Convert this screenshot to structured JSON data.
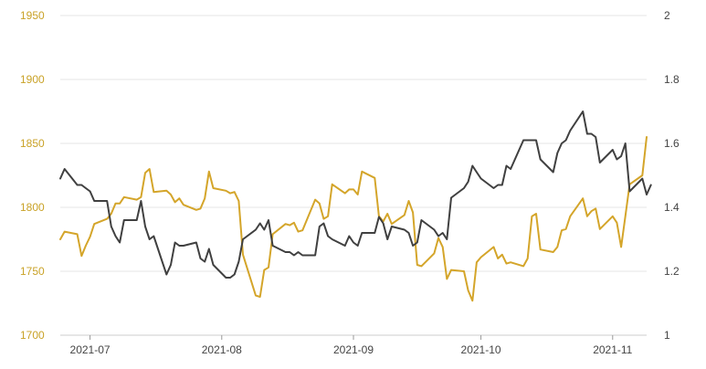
{
  "chart_data": {
    "type": "line",
    "title": "",
    "legend": "none",
    "grid": "horizontal",
    "x_ticks": [
      {
        "label": "2021-07",
        "date": "2021-07-01"
      },
      {
        "label": "2021-08",
        "date": "2021-08-01"
      },
      {
        "label": "2021-09",
        "date": "2021-09-01"
      },
      {
        "label": "2021-10",
        "date": "2021-10-01"
      },
      {
        "label": "2021-11",
        "date": "2021-11-01"
      }
    ],
    "xlim": [
      "2021-06-24",
      "2021-11-09"
    ],
    "y_left": {
      "ticks": [
        "1950",
        "1900",
        "1850",
        "1800",
        "1750",
        "1700"
      ],
      "range": [
        1700,
        1950
      ],
      "color": "#c9a227"
    },
    "y_right": {
      "ticks": [
        "2",
        "1.8",
        "1.6",
        "1.4",
        "1.2",
        "1"
      ],
      "range": [
        1,
        2
      ],
      "color": "#444444"
    },
    "series": [
      {
        "axis": "left",
        "color": "#d4a52a",
        "points": [
          [
            "2021-06-24",
            1775
          ],
          [
            "2021-06-25",
            1781
          ],
          [
            "2021-06-28",
            1779
          ],
          [
            "2021-06-29",
            1762
          ],
          [
            "2021-06-30",
            1770
          ],
          [
            "2021-07-01",
            1777
          ],
          [
            "2021-07-02",
            1787
          ],
          [
            "2021-07-05",
            1791
          ],
          [
            "2021-07-06",
            1795
          ],
          [
            "2021-07-07",
            1803
          ],
          [
            "2021-07-08",
            1803
          ],
          [
            "2021-07-09",
            1808
          ],
          [
            "2021-07-12",
            1806
          ],
          [
            "2021-07-13",
            1808
          ],
          [
            "2021-07-14",
            1827
          ],
          [
            "2021-07-15",
            1830
          ],
          [
            "2021-07-16",
            1812
          ],
          [
            "2021-07-19",
            1813
          ],
          [
            "2021-07-20",
            1810
          ],
          [
            "2021-07-21",
            1804
          ],
          [
            "2021-07-22",
            1807
          ],
          [
            "2021-07-23",
            1802
          ],
          [
            "2021-07-26",
            1798
          ],
          [
            "2021-07-27",
            1799
          ],
          [
            "2021-07-28",
            1807
          ],
          [
            "2021-07-29",
            1828
          ],
          [
            "2021-07-30",
            1815
          ],
          [
            "2021-08-02",
            1813
          ],
          [
            "2021-08-03",
            1811
          ],
          [
            "2021-08-04",
            1812
          ],
          [
            "2021-08-05",
            1805
          ],
          [
            "2021-08-06",
            1763
          ],
          [
            "2021-08-09",
            1731
          ],
          [
            "2021-08-10",
            1730
          ],
          [
            "2021-08-11",
            1751
          ],
          [
            "2021-08-12",
            1753
          ],
          [
            "2021-08-13",
            1779
          ],
          [
            "2021-08-16",
            1787
          ],
          [
            "2021-08-17",
            1786
          ],
          [
            "2021-08-18",
            1788
          ],
          [
            "2021-08-19",
            1781
          ],
          [
            "2021-08-20",
            1782
          ],
          [
            "2021-08-23",
            1806
          ],
          [
            "2021-08-24",
            1803
          ],
          [
            "2021-08-25",
            1791
          ],
          [
            "2021-08-26",
            1793
          ],
          [
            "2021-08-27",
            1818
          ],
          [
            "2021-08-30",
            1811
          ],
          [
            "2021-08-31",
            1814
          ],
          [
            "2021-09-01",
            1814
          ],
          [
            "2021-09-02",
            1810
          ],
          [
            "2021-09-03",
            1828
          ],
          [
            "2021-09-06",
            1823
          ],
          [
            "2021-09-07",
            1793
          ],
          [
            "2021-09-08",
            1789
          ],
          [
            "2021-09-09",
            1795
          ],
          [
            "2021-09-10",
            1787
          ],
          [
            "2021-09-13",
            1794
          ],
          [
            "2021-09-14",
            1805
          ],
          [
            "2021-09-15",
            1796
          ],
          [
            "2021-09-16",
            1755
          ],
          [
            "2021-09-17",
            1754
          ],
          [
            "2021-09-20",
            1764
          ],
          [
            "2021-09-21",
            1776
          ],
          [
            "2021-09-22",
            1769
          ],
          [
            "2021-09-23",
            1744
          ],
          [
            "2021-09-24",
            1751
          ],
          [
            "2021-09-27",
            1750
          ],
          [
            "2021-09-28",
            1735
          ],
          [
            "2021-09-29",
            1727
          ],
          [
            "2021-09-30",
            1757
          ],
          [
            "2021-10-01",
            1761
          ],
          [
            "2021-10-04",
            1769
          ],
          [
            "2021-10-05",
            1760
          ],
          [
            "2021-10-06",
            1763
          ],
          [
            "2021-10-07",
            1756
          ],
          [
            "2021-10-08",
            1757
          ],
          [
            "2021-10-11",
            1754
          ],
          [
            "2021-10-12",
            1760
          ],
          [
            "2021-10-13",
            1793
          ],
          [
            "2021-10-14",
            1795
          ],
          [
            "2021-10-15",
            1767
          ],
          [
            "2021-10-18",
            1765
          ],
          [
            "2021-10-19",
            1769
          ],
          [
            "2021-10-20",
            1782
          ],
          [
            "2021-10-21",
            1783
          ],
          [
            "2021-10-22",
            1793
          ],
          [
            "2021-10-25",
            1807
          ],
          [
            "2021-10-26",
            1793
          ],
          [
            "2021-10-27",
            1797
          ],
          [
            "2021-10-28",
            1799
          ],
          [
            "2021-10-29",
            1783
          ],
          [
            "2021-11-01",
            1793
          ],
          [
            "2021-11-02",
            1788
          ],
          [
            "2021-11-03",
            1769
          ],
          [
            "2021-11-04",
            1793
          ],
          [
            "2021-11-05",
            1818
          ],
          [
            "2021-11-08",
            1825
          ],
          [
            "2021-11-09",
            1855
          ]
        ]
      },
      {
        "axis": "right",
        "color": "#404040",
        "points": [
          [
            "2021-06-24",
            1.49
          ],
          [
            "2021-06-25",
            1.52
          ],
          [
            "2021-06-28",
            1.47
          ],
          [
            "2021-06-29",
            1.47
          ],
          [
            "2021-06-30",
            1.46
          ],
          [
            "2021-07-01",
            1.45
          ],
          [
            "2021-07-02",
            1.42
          ],
          [
            "2021-07-05",
            1.42
          ],
          [
            "2021-07-06",
            1.34
          ],
          [
            "2021-07-07",
            1.31
          ],
          [
            "2021-07-08",
            1.29
          ],
          [
            "2021-07-09",
            1.36
          ],
          [
            "2021-07-12",
            1.36
          ],
          [
            "2021-07-13",
            1.42
          ],
          [
            "2021-07-14",
            1.34
          ],
          [
            "2021-07-15",
            1.3
          ],
          [
            "2021-07-16",
            1.31
          ],
          [
            "2021-07-19",
            1.19
          ],
          [
            "2021-07-20",
            1.22
          ],
          [
            "2021-07-21",
            1.29
          ],
          [
            "2021-07-22",
            1.28
          ],
          [
            "2021-07-23",
            1.28
          ],
          [
            "2021-07-26",
            1.29
          ],
          [
            "2021-07-27",
            1.24
          ],
          [
            "2021-07-28",
            1.23
          ],
          [
            "2021-07-29",
            1.27
          ],
          [
            "2021-07-30",
            1.22
          ],
          [
            "2021-08-02",
            1.18
          ],
          [
            "2021-08-03",
            1.18
          ],
          [
            "2021-08-04",
            1.19
          ],
          [
            "2021-08-05",
            1.23
          ],
          [
            "2021-08-06",
            1.3
          ],
          [
            "2021-08-09",
            1.33
          ],
          [
            "2021-08-10",
            1.35
          ],
          [
            "2021-08-11",
            1.33
          ],
          [
            "2021-08-12",
            1.36
          ],
          [
            "2021-08-13",
            1.28
          ],
          [
            "2021-08-16",
            1.26
          ],
          [
            "2021-08-17",
            1.26
          ],
          [
            "2021-08-18",
            1.25
          ],
          [
            "2021-08-19",
            1.26
          ],
          [
            "2021-08-20",
            1.25
          ],
          [
            "2021-08-23",
            1.25
          ],
          [
            "2021-08-24",
            1.34
          ],
          [
            "2021-08-25",
            1.35
          ],
          [
            "2021-08-26",
            1.31
          ],
          [
            "2021-08-27",
            1.3
          ],
          [
            "2021-08-30",
            1.28
          ],
          [
            "2021-08-31",
            1.31
          ],
          [
            "2021-09-01",
            1.29
          ],
          [
            "2021-09-02",
            1.28
          ],
          [
            "2021-09-03",
            1.32
          ],
          [
            "2021-09-06",
            1.32
          ],
          [
            "2021-09-07",
            1.37
          ],
          [
            "2021-09-08",
            1.35
          ],
          [
            "2021-09-09",
            1.3
          ],
          [
            "2021-09-10",
            1.34
          ],
          [
            "2021-09-13",
            1.33
          ],
          [
            "2021-09-14",
            1.32
          ],
          [
            "2021-09-15",
            1.28
          ],
          [
            "2021-09-16",
            1.29
          ],
          [
            "2021-09-17",
            1.36
          ],
          [
            "2021-09-20",
            1.33
          ],
          [
            "2021-09-21",
            1.31
          ],
          [
            "2021-09-22",
            1.32
          ],
          [
            "2021-09-23",
            1.3
          ],
          [
            "2021-09-24",
            1.43
          ],
          [
            "2021-09-27",
            1.46
          ],
          [
            "2021-09-28",
            1.48
          ],
          [
            "2021-09-29",
            1.53
          ],
          [
            "2021-09-30",
            1.51
          ],
          [
            "2021-10-01",
            1.49
          ],
          [
            "2021-10-04",
            1.46
          ],
          [
            "2021-10-05",
            1.47
          ],
          [
            "2021-10-06",
            1.47
          ],
          [
            "2021-10-07",
            1.53
          ],
          [
            "2021-10-08",
            1.52
          ],
          [
            "2021-10-11",
            1.61
          ],
          [
            "2021-10-12",
            1.61
          ],
          [
            "2021-10-13",
            1.61
          ],
          [
            "2021-10-14",
            1.61
          ],
          [
            "2021-10-15",
            1.55
          ],
          [
            "2021-10-18",
            1.51
          ],
          [
            "2021-10-19",
            1.57
          ],
          [
            "2021-10-20",
            1.6
          ],
          [
            "2021-10-21",
            1.61
          ],
          [
            "2021-10-22",
            1.64
          ],
          [
            "2021-10-25",
            1.7
          ],
          [
            "2021-10-26",
            1.63
          ],
          [
            "2021-10-27",
            1.63
          ],
          [
            "2021-10-28",
            1.62
          ],
          [
            "2021-10-29",
            1.54
          ],
          [
            "2021-11-01",
            1.58
          ],
          [
            "2021-11-02",
            1.55
          ],
          [
            "2021-11-03",
            1.56
          ],
          [
            "2021-11-04",
            1.6
          ],
          [
            "2021-11-05",
            1.45
          ],
          [
            "2021-11-08",
            1.49
          ],
          [
            "2021-11-09",
            1.44
          ],
          [
            "2021-11-10",
            1.47
          ]
        ]
      }
    ]
  }
}
